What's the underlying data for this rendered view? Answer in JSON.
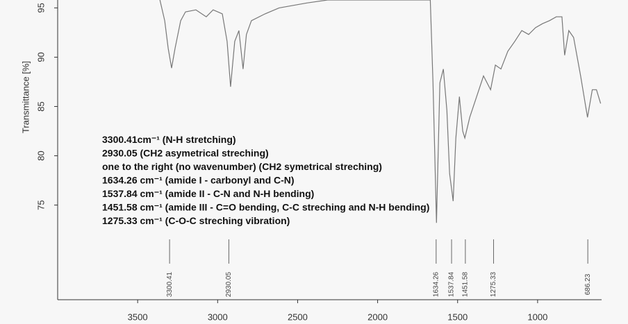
{
  "chart_data": {
    "type": "line",
    "y_label": "Transmittance [%]",
    "x": [
      3361,
      3331,
      3309,
      3288,
      3266,
      3231,
      3201,
      3136,
      3071,
      3028,
      2971,
      2941,
      2919,
      2893,
      2867,
      2841,
      2820,
      2789,
      2703,
      2616,
      2443,
      2313,
      1749,
      1671,
      1654,
      1632,
      1611,
      1589,
      1567,
      1550,
      1528,
      1511,
      1489,
      1468,
      1455,
      1424,
      1381,
      1338,
      1294,
      1264,
      1229,
      1186,
      1143,
      1099,
      1056,
      1013,
      969,
      926,
      883,
      848,
      831,
      805,
      775,
      731,
      688,
      658,
      632,
      606
    ],
    "values": [
      95.8,
      93.7,
      90.9,
      88.9,
      90.9,
      93.7,
      94.6,
      94.8,
      94.1,
      94.8,
      94.4,
      91.6,
      87.0,
      91.6,
      92.7,
      88.8,
      92.3,
      93.7,
      94.4,
      95.0,
      95.5,
      95.8,
      95.8,
      95.8,
      87.4,
      73.2,
      87.4,
      88.8,
      84.6,
      78.2,
      75.4,
      81.8,
      86.0,
      82.5,
      81.8,
      83.9,
      86.0,
      88.1,
      86.7,
      89.2,
      88.8,
      90.6,
      91.6,
      92.7,
      92.3,
      93.0,
      93.4,
      93.7,
      94.1,
      94.1,
      90.2,
      92.7,
      92.0,
      88.1,
      83.9,
      86.7,
      86.7,
      85.3
    ],
    "color": "#777777",
    "xlim": [
      4000,
      600
    ],
    "ylim": [
      65.4,
      95.8
    ],
    "xticks": [
      3500,
      3000,
      2500,
      2000,
      1500,
      1000
    ],
    "yticks": [
      75,
      80,
      85,
      90,
      95
    ],
    "peaks": [
      3300.41,
      2930.05,
      1634.26,
      1537.84,
      1451.58,
      1275.33,
      686.23
    ],
    "annotations": [
      "3300.41cm⁻¹ (N-H  stretching)",
      "2930.05 (CH2 asymetrical streching)",
      "one to the right (no wavenumber) (CH2 symetrical streching)",
      "1634.26 cm⁻¹ (amide I - carbonyl and C-N)",
      "1537.84 cm⁻¹ (amide II - C-N and N-H bending)",
      "1451.58 cm⁻¹ (amide III - C=O bending, C-C streching and N-H bending)",
      "1275.33 cm⁻¹ (C-O-C streching vibration)"
    ]
  }
}
